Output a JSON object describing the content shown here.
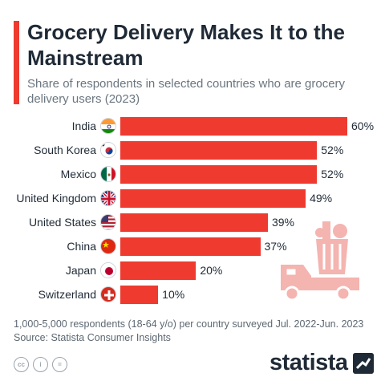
{
  "header": {
    "title": "Grocery Delivery Makes It to the Mainstream",
    "subtitle": "Share of respondents in selected countries who are grocery delivery users (2023)"
  },
  "chart_data": {
    "type": "bar",
    "orientation": "horizontal",
    "categories": [
      "India",
      "South Korea",
      "Mexico",
      "United Kingdom",
      "United States",
      "China",
      "Japan",
      "Switzerland"
    ],
    "values": [
      60,
      52,
      52,
      49,
      39,
      37,
      20,
      10
    ],
    "value_labels": [
      "60%",
      "52%",
      "52%",
      "49%",
      "39%",
      "37%",
      "20%",
      "10%"
    ],
    "flags": [
      "india-flag-icon",
      "south-korea-flag-icon",
      "mexico-flag-icon",
      "united-kingdom-flag-icon",
      "united-states-flag-icon",
      "china-flag-icon",
      "japan-flag-icon",
      "switzerland-flag-icon"
    ],
    "xlim": [
      0,
      60
    ],
    "grid": false,
    "legend": "none",
    "bar_color": "#ee3a2f"
  },
  "footer": {
    "note": "1,000-5,000 respondents (18-64 y/o) per country surveyed Jul. 2022-Jun. 2023",
    "source": "Source: Statista Consumer Insights",
    "license_icons": [
      "cc-icon",
      "by-icon",
      "nd-icon"
    ],
    "license_glyphs": [
      "cc",
      "i",
      "="
    ],
    "logo": "statista"
  },
  "colors": {
    "accent": "#ee3a2f",
    "title": "#1f2a36",
    "subtitle": "#6b7680",
    "illustration": "#f4b4b0"
  }
}
